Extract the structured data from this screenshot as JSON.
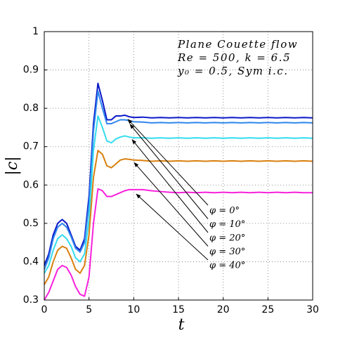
{
  "chart_data": {
    "type": "line",
    "annotations": [
      "Plane Couette flow",
      "Re = 500,  k = 6.5",
      "y₀ = 0.5,  Sym i.c."
    ],
    "x_label": "t",
    "y_label": "|c|",
    "x": [
      0,
      0.5,
      1,
      1.5,
      2,
      2.5,
      3,
      3.5,
      4,
      4.5,
      5,
      5.5,
      6,
      6.5,
      7,
      7.5,
      8,
      8.5,
      9,
      9.5,
      10,
      11,
      12,
      13,
      14,
      15,
      16,
      17,
      18,
      19,
      20,
      21,
      22,
      23,
      24,
      25,
      26,
      27,
      28,
      29,
      30
    ],
    "series": [
      {
        "name": "φ = 0°",
        "color": "#0a18c8",
        "values": [
          0.39,
          0.42,
          0.47,
          0.5,
          0.51,
          0.5,
          0.47,
          0.44,
          0.43,
          0.46,
          0.57,
          0.76,
          0.865,
          0.82,
          0.77,
          0.77,
          0.78,
          0.78,
          0.782,
          0.778,
          0.776,
          0.777,
          0.775,
          0.776,
          0.775,
          0.776,
          0.775,
          0.776,
          0.775,
          0.776,
          0.775,
          0.776,
          0.775,
          0.776,
          0.775,
          0.776,
          0.775,
          0.776,
          0.775,
          0.776,
          0.775
        ]
      },
      {
        "name": "φ = 10°",
        "color": "#2f86ee",
        "values": [
          0.38,
          0.41,
          0.46,
          0.49,
          0.5,
          0.49,
          0.465,
          0.435,
          0.425,
          0.45,
          0.55,
          0.74,
          0.845,
          0.8,
          0.76,
          0.76,
          0.765,
          0.77,
          0.77,
          0.768,
          0.765,
          0.764,
          0.762,
          0.763,
          0.762,
          0.763,
          0.762,
          0.763,
          0.762,
          0.763,
          0.762,
          0.763,
          0.762,
          0.763,
          0.762,
          0.763,
          0.762,
          0.763,
          0.762,
          0.763,
          0.762
        ]
      },
      {
        "name": "φ = 20°",
        "color": "#33dcee",
        "values": [
          0.37,
          0.39,
          0.43,
          0.46,
          0.47,
          0.46,
          0.44,
          0.41,
          0.4,
          0.42,
          0.51,
          0.69,
          0.78,
          0.75,
          0.715,
          0.71,
          0.72,
          0.725,
          0.728,
          0.725,
          0.723,
          0.723,
          0.722,
          0.723,
          0.722,
          0.723,
          0.722,
          0.723,
          0.722,
          0.723,
          0.722,
          0.723,
          0.722,
          0.723,
          0.722,
          0.723,
          0.722,
          0.723,
          0.722,
          0.723,
          0.722
        ]
      },
      {
        "name": "φ = 30°",
        "color": "#d9800f",
        "values": [
          0.34,
          0.36,
          0.4,
          0.43,
          0.44,
          0.435,
          0.41,
          0.38,
          0.37,
          0.39,
          0.47,
          0.62,
          0.69,
          0.68,
          0.65,
          0.645,
          0.655,
          0.665,
          0.668,
          0.667,
          0.665,
          0.664,
          0.662,
          0.663,
          0.662,
          0.663,
          0.662,
          0.663,
          0.662,
          0.663,
          0.662,
          0.663,
          0.662,
          0.663,
          0.662,
          0.663,
          0.662,
          0.663,
          0.662,
          0.663,
          0.662
        ]
      },
      {
        "name": "φ = 40°",
        "color": "#f822dc",
        "values": [
          0.3,
          0.32,
          0.35,
          0.38,
          0.39,
          0.385,
          0.365,
          0.335,
          0.315,
          0.31,
          0.36,
          0.5,
          0.59,
          0.585,
          0.57,
          0.57,
          0.575,
          0.58,
          0.585,
          0.588,
          0.588,
          0.588,
          0.585,
          0.583,
          0.581,
          0.58,
          0.581,
          0.58,
          0.581,
          0.58,
          0.581,
          0.58,
          0.581,
          0.58,
          0.581,
          0.58,
          0.581,
          0.58,
          0.581,
          0.58,
          0.58
        ]
      }
    ],
    "xlim": [
      0,
      30
    ],
    "ylim": [
      0.3,
      1
    ],
    "xticks": [
      0,
      5,
      10,
      15,
      20,
      25,
      30
    ],
    "yticks": [
      0.3,
      0.4,
      0.5,
      0.6,
      0.7,
      0.8,
      0.9,
      1
    ],
    "grid": true
  }
}
